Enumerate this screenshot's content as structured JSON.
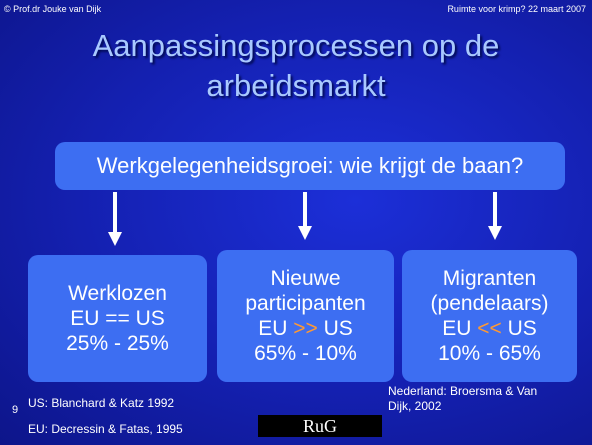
{
  "header": {
    "left": "© Prof.dr Jouke van Dijk",
    "right": "Ruimte voor krimp? 22 maart 2007"
  },
  "title": [
    "Aanpassingsprocessen op de",
    "arbeidsmarkt"
  ],
  "question": "Werkgelegenheidsgroei: wie krijgt de baan?",
  "boxes": [
    {
      "lines": [
        "Werklozen"
      ],
      "compare": {
        "left": "EU",
        "op": "==",
        "right": "US"
      },
      "shares": "25% - 25%"
    },
    {
      "lines": [
        "Nieuwe",
        "participanten"
      ],
      "compare": {
        "left": "EU",
        "op": ">>",
        "right": "US"
      },
      "shares": "65% - 10%"
    },
    {
      "lines": [
        "Migranten",
        "(pendelaars)"
      ],
      "compare": {
        "left": "EU",
        "op": "<<",
        "right": "US"
      },
      "shares": "10% - 65%"
    }
  ],
  "footnotes": {
    "left": [
      "US: Blanchard & Katz 1992",
      "EU: Decressin & Fatas, 1995"
    ],
    "right": "Nederland: Broersma & Van Dijk, 2002"
  },
  "slide_number": "9",
  "logo": "RuG"
}
